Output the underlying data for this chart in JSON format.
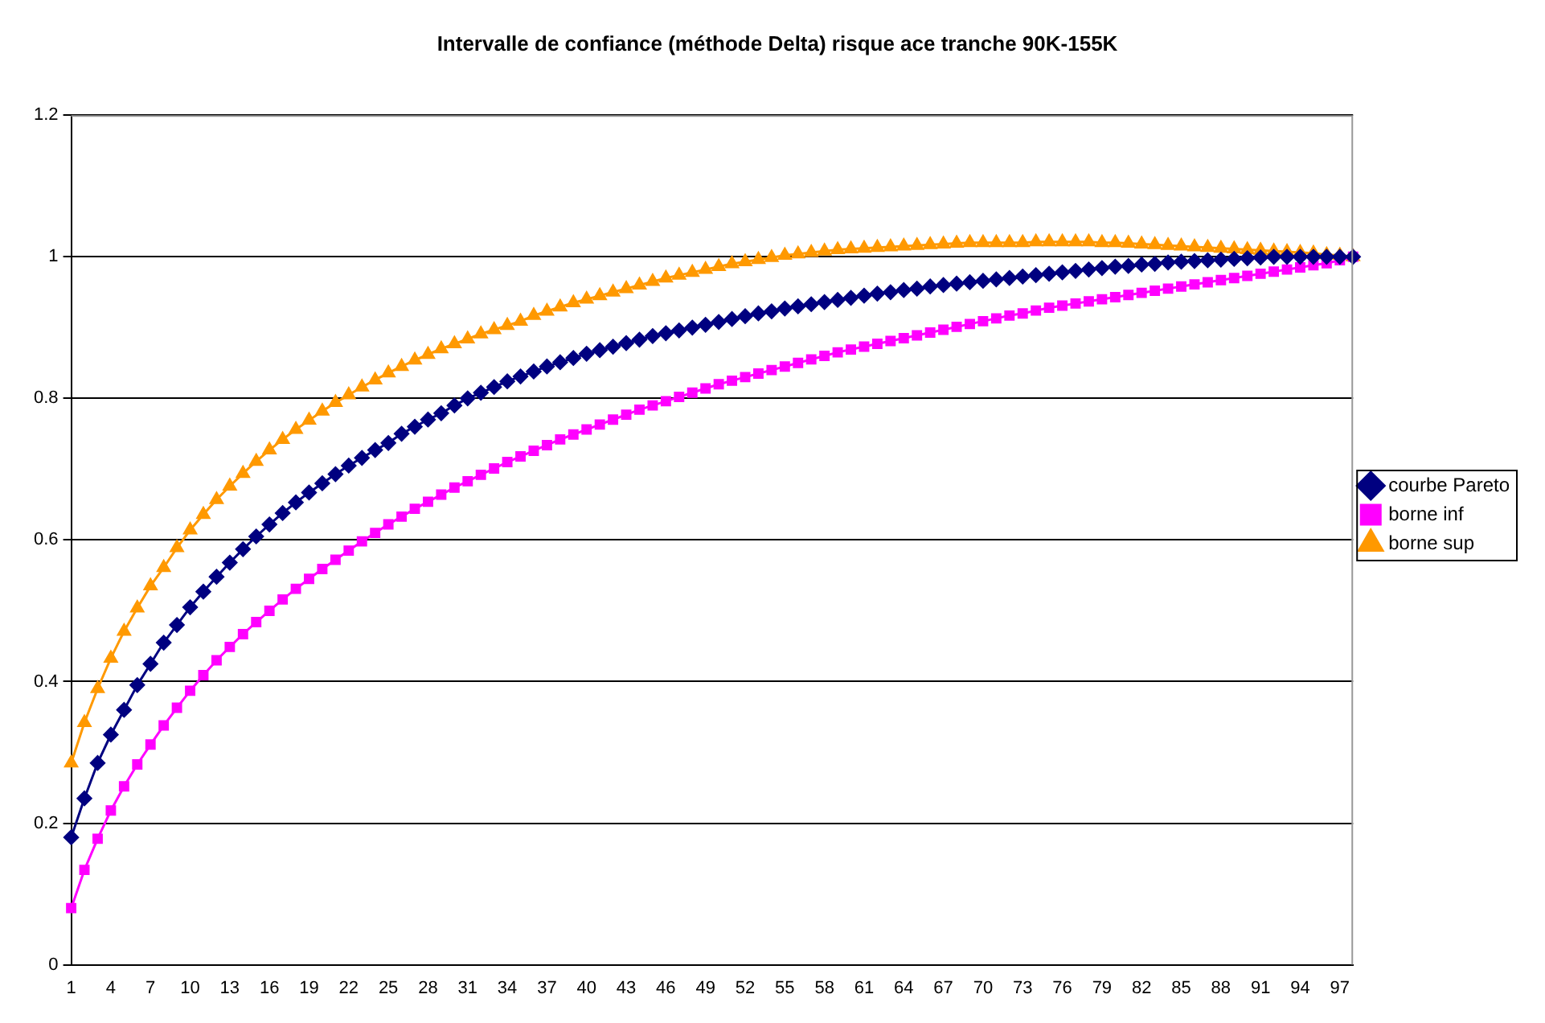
{
  "chart_data": {
    "type": "line",
    "title": "Intervalle de confiance (méthode Delta) risque ace tranche 90K-155K",
    "categories": [
      "1",
      null,
      null,
      "4",
      null,
      null,
      "7",
      null,
      null,
      "10",
      null,
      null,
      "13",
      null,
      null,
      "16",
      null,
      null,
      "19",
      null,
      null,
      "22",
      null,
      null,
      "25",
      null,
      null,
      "28",
      null,
      null,
      "31",
      null,
      null,
      "34",
      null,
      null,
      "37",
      null,
      null,
      "40",
      null,
      null,
      "43",
      null,
      null,
      "46",
      null,
      null,
      "49",
      null,
      null,
      "52",
      null,
      null,
      "55",
      null,
      null,
      "58",
      null,
      null,
      "61",
      null,
      null,
      "64",
      null,
      null,
      "67",
      null,
      null,
      "70",
      null,
      null,
      "73",
      null,
      null,
      "76",
      null,
      null,
      "79",
      null,
      null,
      "82",
      null,
      null,
      "85",
      null,
      null,
      "88",
      null,
      null,
      "91",
      null,
      null,
      "94",
      null,
      null,
      "97",
      null
    ],
    "series": [
      {
        "name": "courbe Pareto",
        "color": "#000080",
        "marker": "diamond",
        "values": [
          0.18,
          0.235,
          0.285,
          0.325,
          0.36,
          0.395,
          0.425,
          0.455,
          0.48,
          0.505,
          0.527,
          0.548,
          0.568,
          0.587,
          0.605,
          0.622,
          0.638,
          0.653,
          0.667,
          0.68,
          0.693,
          0.705,
          0.716,
          0.727,
          0.737,
          0.75,
          0.76,
          0.77,
          0.779,
          0.79,
          0.8,
          0.808,
          0.816,
          0.824,
          0.831,
          0.838,
          0.845,
          0.851,
          0.857,
          0.863,
          0.868,
          0.873,
          0.878,
          0.883,
          0.888,
          0.892,
          0.896,
          0.9,
          0.904,
          0.908,
          0.912,
          0.916,
          0.92,
          0.923,
          0.927,
          0.93,
          0.933,
          0.936,
          0.939,
          0.942,
          0.945,
          0.948,
          0.95,
          0.953,
          0.955,
          0.958,
          0.96,
          0.962,
          0.964,
          0.966,
          0.968,
          0.97,
          0.972,
          0.974,
          0.976,
          0.978,
          0.98,
          0.982,
          0.984,
          0.986,
          0.987,
          0.989,
          0.99,
          0.992,
          0.993,
          0.994,
          0.995,
          0.996,
          0.997,
          0.998,
          0.999,
          1,
          1,
          1,
          1,
          1,
          1,
          1
        ]
      },
      {
        "name": "borne inf",
        "color": "#ff00ff",
        "marker": "square",
        "values": [
          0.08,
          0.134,
          0.178,
          0.218,
          0.252,
          0.283,
          0.311,
          0.338,
          0.363,
          0.387,
          0.409,
          0.43,
          0.449,
          0.467,
          0.484,
          0.5,
          0.516,
          0.531,
          0.545,
          0.559,
          0.572,
          0.585,
          0.598,
          0.61,
          0.622,
          0.633,
          0.644,
          0.654,
          0.664,
          0.674,
          0.683,
          0.692,
          0.701,
          0.71,
          0.718,
          0.726,
          0.734,
          0.742,
          0.749,
          0.756,
          0.763,
          0.77,
          0.777,
          0.784,
          0.79,
          0.796,
          0.802,
          0.808,
          0.814,
          0.82,
          0.825,
          0.83,
          0.835,
          0.84,
          0.845,
          0.85,
          0.855,
          0.86,
          0.865,
          0.869,
          0.873,
          0.877,
          0.881,
          0.885,
          0.889,
          0.893,
          0.897,
          0.901,
          0.905,
          0.909,
          0.913,
          0.917,
          0.92,
          0.924,
          0.928,
          0.931,
          0.934,
          0.937,
          0.94,
          0.943,
          0.946,
          0.949,
          0.952,
          0.955,
          0.958,
          0.961,
          0.964,
          0.967,
          0.97,
          0.973,
          0.976,
          0.979,
          0.982,
          0.985,
          0.988,
          0.991,
          0.995,
          1
        ]
      },
      {
        "name": "borne sup",
        "color": "#ff9900",
        "marker": "triangle",
        "values": [
          0.285,
          0.342,
          0.39,
          0.433,
          0.471,
          0.504,
          0.535,
          0.561,
          0.589,
          0.614,
          0.636,
          0.657,
          0.676,
          0.694,
          0.711,
          0.727,
          0.742,
          0.756,
          0.769,
          0.782,
          0.794,
          0.805,
          0.816,
          0.826,
          0.836,
          0.845,
          0.854,
          0.862,
          0.87,
          0.877,
          0.884,
          0.891,
          0.897,
          0.903,
          0.909,
          0.917,
          0.923,
          0.929,
          0.935,
          0.94,
          0.945,
          0.95,
          0.955,
          0.96,
          0.965,
          0.97,
          0.974,
          0.978,
          0.982,
          0.986,
          0.99,
          0.993,
          0.996,
          0.999,
          1.002,
          1.004,
          1.006,
          1.008,
          1.01,
          1.011,
          1.012,
          1.013,
          1.014,
          1.015,
          1.016,
          1.017,
          1.018,
          1.019,
          1.02,
          1.02,
          1.02,
          1.02,
          1.02,
          1.021,
          1.021,
          1.021,
          1.021,
          1.021,
          1.02,
          1.02,
          1.019,
          1.018,
          1.017,
          1.016,
          1.015,
          1.014,
          1.013,
          1.012,
          1.011,
          1.01,
          1.009,
          1.008,
          1.007,
          1.006,
          1.005,
          1.003,
          1.002,
          1
        ]
      }
    ],
    "ylim": [
      0,
      1.2
    ],
    "yticks": [
      0,
      0.2,
      0.4,
      0.6,
      0.8,
      1,
      1.2
    ],
    "grid": "y",
    "legend": "right"
  }
}
